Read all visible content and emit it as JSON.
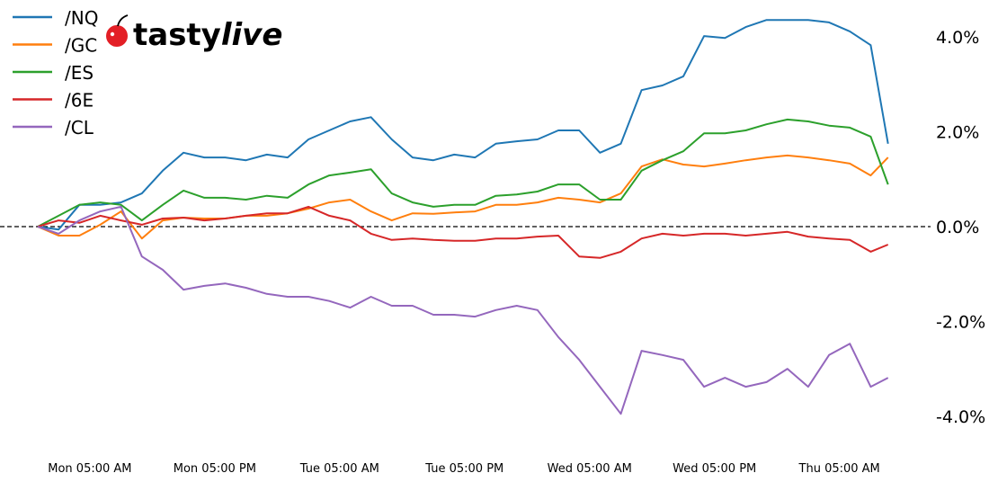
{
  "logo": {
    "text_a": "tasty",
    "text_b": "live"
  },
  "chart_data": {
    "type": "line",
    "title": "",
    "xlabel": "",
    "ylabel": "",
    "ylim": [
      -4.7,
      4.7
    ],
    "grid": false,
    "legend_placement": "top-left",
    "reference_line": {
      "y": 0,
      "style": "dashed",
      "color": "#000000"
    },
    "y_ticks": [
      4,
      2,
      0,
      -2,
      -4
    ],
    "y_tick_labels": [
      "4.0%",
      "2.0%",
      "0.0%",
      "-2.0%",
      "-4.0%"
    ],
    "x_tick_labels": [
      "Mon 05:00 AM",
      "Mon 05:00 PM",
      "Tue 05:00 AM",
      "Tue 05:00 PM",
      "Wed 05:00 AM",
      "Wed 05:00 PM",
      "Thu 05:00 AM"
    ],
    "x": [
      "Mon 00:00",
      "Mon 02:00",
      "Mon 04:00",
      "Mon 06:00",
      "Mon 08:00",
      "Mon 10:00",
      "Mon 12:00",
      "Mon 14:00",
      "Mon 16:00",
      "Mon 18:00",
      "Mon 20:00",
      "Mon 22:00",
      "Tue 00:00",
      "Tue 02:00",
      "Tue 04:00",
      "Tue 06:00",
      "Tue 08:00",
      "Tue 10:00",
      "Tue 12:00",
      "Tue 14:00",
      "Tue 16:00",
      "Tue 18:00",
      "Tue 20:00",
      "Tue 22:00",
      "Wed 00:00",
      "Wed 02:00",
      "Wed 04:00",
      "Wed 06:00",
      "Wed 08:00",
      "Wed 10:00",
      "Wed 12:00",
      "Wed 14:00",
      "Wed 16:00",
      "Wed 18:00",
      "Wed 20:00",
      "Wed 22:00",
      "Thu 00:00",
      "Thu 02:00",
      "Thu 04:00",
      "Thu 06:00",
      "Thu 08:00",
      "Thu 09:40"
    ],
    "series": [
      {
        "name": "/NQ",
        "color": "#1f77b4",
        "values": [
          0,
          -0.06,
          0.46,
          0.46,
          0.51,
          0.7,
          1.18,
          1.56,
          1.46,
          1.46,
          1.4,
          1.52,
          1.46,
          1.84,
          2.03,
          2.22,
          2.31,
          1.84,
          1.46,
          1.4,
          1.52,
          1.46,
          1.75,
          1.8,
          1.84,
          2.03,
          2.03,
          1.56,
          1.75,
          2.88,
          2.98,
          3.17,
          4.02,
          3.98,
          4.21,
          4.36,
          4.36,
          4.36,
          4.31,
          4.12,
          3.83,
          1.75
        ]
      },
      {
        "name": "/GC",
        "color": "#ff7f0e",
        "values": [
          0,
          -0.19,
          -0.19,
          0.04,
          0.32,
          -0.25,
          0.13,
          0.19,
          0.17,
          0.17,
          0.23,
          0.23,
          0.28,
          0.38,
          0.51,
          0.57,
          0.32,
          0.13,
          0.28,
          0.27,
          0.3,
          0.32,
          0.46,
          0.46,
          0.51,
          0.61,
          0.57,
          0.51,
          0.7,
          1.27,
          1.42,
          1.31,
          1.27,
          1.33,
          1.4,
          1.46,
          1.5,
          1.46,
          1.4,
          1.33,
          1.08,
          1.46
        ]
      },
      {
        "name": "/ES",
        "color": "#2ca02c",
        "values": [
          0,
          0.23,
          0.46,
          0.51,
          0.46,
          0.13,
          0.46,
          0.76,
          0.61,
          0.61,
          0.57,
          0.65,
          0.61,
          0.89,
          1.08,
          1.14,
          1.21,
          0.7,
          0.51,
          0.42,
          0.46,
          0.46,
          0.65,
          0.68,
          0.74,
          0.89,
          0.89,
          0.57,
          0.57,
          1.18,
          1.4,
          1.59,
          1.97,
          1.97,
          2.03,
          2.16,
          2.26,
          2.22,
          2.13,
          2.09,
          1.9,
          0.89
        ]
      },
      {
        "name": "/6E",
        "color": "#d62728",
        "values": [
          0,
          0.13,
          0.08,
          0.23,
          0.13,
          0.04,
          0.17,
          0.19,
          0.13,
          0.17,
          0.23,
          0.28,
          0.28,
          0.42,
          0.23,
          0.13,
          -0.15,
          -0.28,
          -0.25,
          -0.28,
          -0.3,
          -0.3,
          -0.25,
          -0.25,
          -0.21,
          -0.19,
          -0.63,
          -0.66,
          -0.53,
          -0.25,
          -0.15,
          -0.19,
          -0.15,
          -0.15,
          -0.19,
          -0.15,
          -0.11,
          -0.21,
          -0.25,
          -0.28,
          -0.53,
          -0.38
        ]
      },
      {
        "name": "/CL",
        "color": "#9467bd",
        "values": [
          0,
          -0.15,
          0.13,
          0.32,
          0.42,
          -0.63,
          -0.91,
          -1.33,
          -1.25,
          -1.2,
          -1.29,
          -1.42,
          -1.48,
          -1.48,
          -1.57,
          -1.71,
          -1.48,
          -1.67,
          -1.67,
          -1.86,
          -1.86,
          -1.9,
          -1.76,
          -1.67,
          -1.76,
          -2.33,
          -2.81,
          -3.38,
          -3.95,
          -2.62,
          -2.71,
          -2.81,
          -3.38,
          -3.19,
          -3.38,
          -3.28,
          -3.0,
          -3.38,
          -2.71,
          -2.47,
          -3.38,
          -3.19
        ]
      }
    ]
  }
}
